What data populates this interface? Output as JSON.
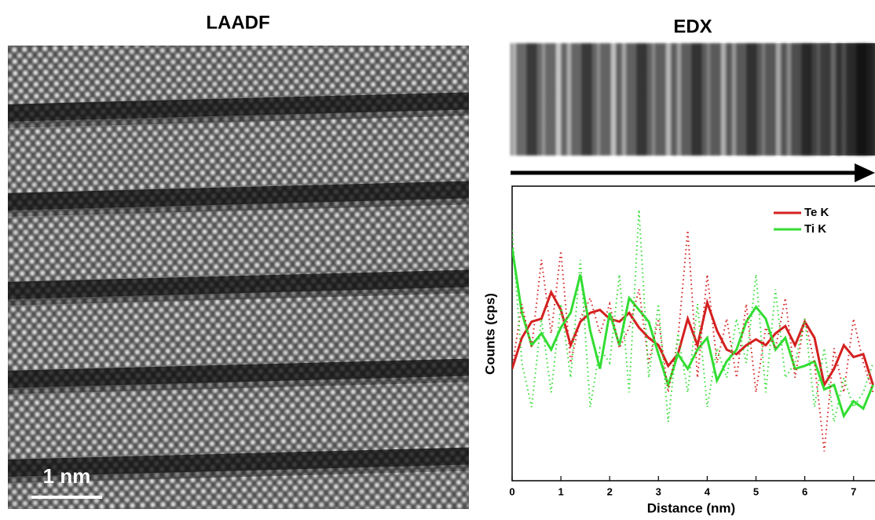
{
  "panels": {
    "left_title": "LAADF",
    "scale_bar": "1 nm",
    "right_title": "EDX"
  },
  "chart_data": {
    "type": "line",
    "xlabel": "Distance (nm)",
    "ylabel": "Counts (cps)",
    "x": [
      0,
      0.2,
      0.4,
      0.6,
      0.8,
      1.0,
      1.2,
      1.4,
      1.6,
      1.8,
      2.0,
      2.2,
      2.4,
      2.6,
      2.8,
      3.0,
      3.2,
      3.4,
      3.6,
      3.8,
      4.0,
      4.2,
      4.4,
      4.6,
      4.8,
      5.0,
      5.2,
      5.4,
      5.6,
      5.8,
      6.0,
      6.2,
      6.4,
      6.6,
      6.8,
      7.0,
      7.2,
      7.4
    ],
    "xlim": [
      0,
      7.45
    ],
    "xticks": [
      0,
      1,
      2,
      3,
      4,
      5,
      6,
      7
    ],
    "ylim": [
      0,
      100
    ],
    "legend": "upper right",
    "series": [
      {
        "name": "Te K",
        "color": "#d42020",
        "values": [
          38,
          48.5,
          54,
          55,
          64,
          58,
          46,
          54,
          57,
          58,
          55,
          54,
          57,
          52,
          48.5,
          46,
          39,
          43,
          55,
          46,
          60.5,
          51,
          44.5,
          43,
          46,
          48,
          46,
          50,
          52.5,
          46,
          54,
          48.5,
          32.5,
          38,
          46,
          42,
          43,
          32.5
        ]
      },
      {
        "name": "Ti K",
        "color": "#33dd33",
        "values": [
          79,
          57,
          46,
          50,
          44.5,
          52,
          57,
          70,
          51,
          38,
          57,
          46,
          62,
          58,
          54,
          43,
          32.5,
          43,
          38,
          44.5,
          48.5,
          34,
          40.5,
          44.5,
          54,
          59,
          55,
          44.5,
          48.5,
          38,
          39,
          40.5,
          31,
          32.5,
          22,
          27,
          24.5,
          32.5
        ]
      },
      {
        "color": "#d42020",
        "dotted": true,
        "values": [
          38,
          60,
          45,
          75,
          50,
          78,
          40,
          55,
          62,
          50,
          60,
          45,
          52,
          65,
          40,
          55,
          30,
          48,
          85,
          35,
          70,
          40,
          55,
          35,
          60,
          30,
          52,
          45,
          62,
          35,
          55,
          40,
          10,
          45,
          30,
          55,
          40,
          30
        ]
      },
      {
        "color": "#33dd33",
        "dotted": true,
        "values": [
          85,
          40,
          25,
          55,
          30,
          60,
          35,
          75,
          25,
          45,
          40,
          70,
          30,
          92,
          35,
          60,
          20,
          50,
          30,
          60,
          25,
          45,
          35,
          55,
          40,
          70,
          30,
          65,
          35,
          40,
          55,
          25,
          45,
          20,
          35,
          25,
          30,
          40
        ]
      }
    ]
  }
}
